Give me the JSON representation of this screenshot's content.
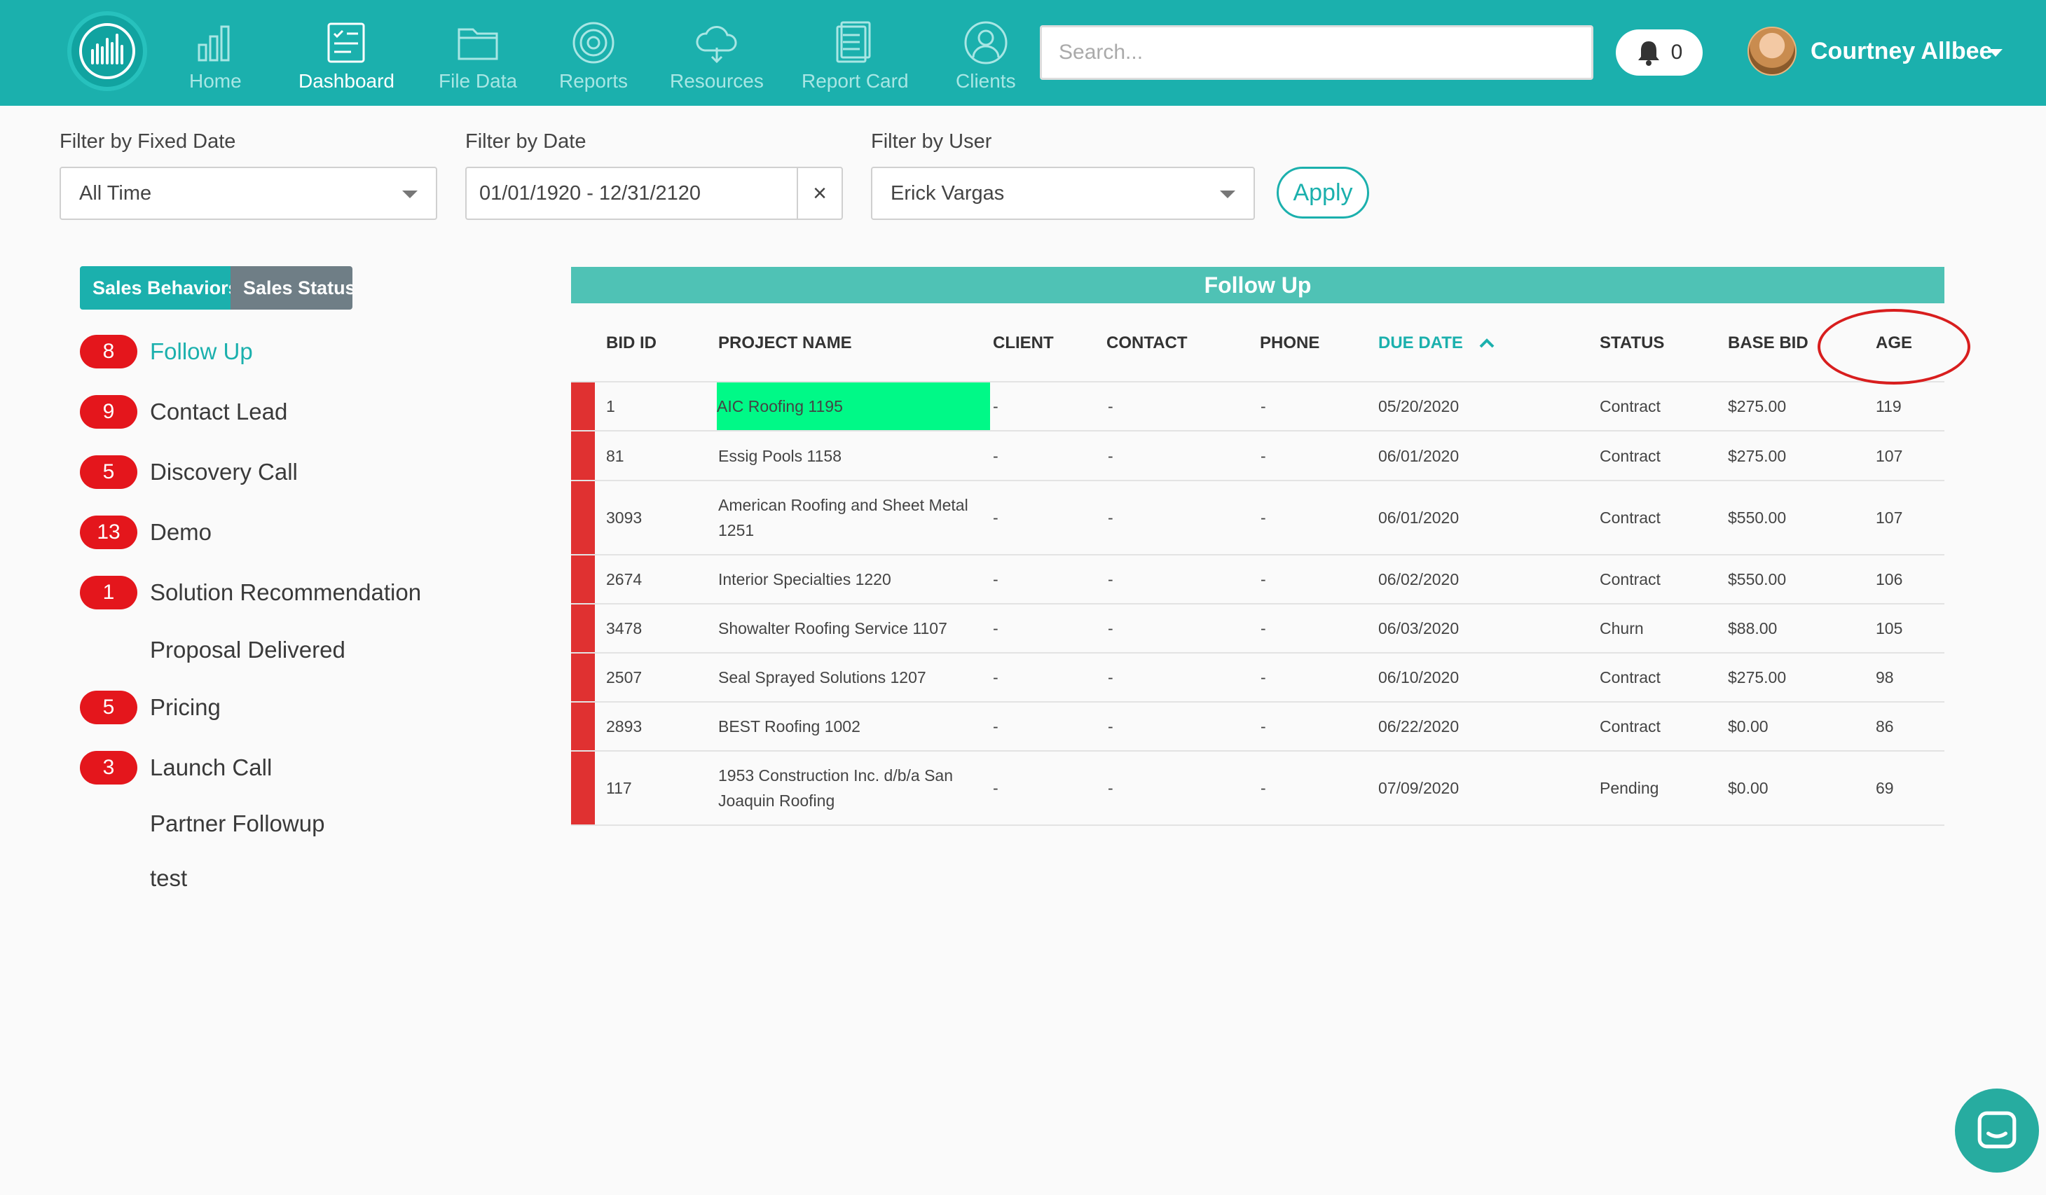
{
  "nav": {
    "items": [
      {
        "label": "Home",
        "icon": "bar-chart-icon"
      },
      {
        "label": "Dashboard",
        "icon": "checklist-icon",
        "active": true
      },
      {
        "label": "File Data",
        "icon": "folder-icon"
      },
      {
        "label": "Reports",
        "icon": "target-icon"
      },
      {
        "label": "Resources",
        "icon": "cloud-icon"
      },
      {
        "label": "Report Card",
        "icon": "document-icon"
      },
      {
        "label": "Clients",
        "icon": "user-icon"
      }
    ],
    "search_placeholder": "Search...",
    "notification_count": "0",
    "user_name": "Courtney Allbee"
  },
  "filters": {
    "fixed_date": {
      "label": "Filter by Fixed Date",
      "value": "All Time"
    },
    "date": {
      "label": "Filter by Date",
      "value": "01/01/1920 - 12/31/2120",
      "clear": "×"
    },
    "user": {
      "label": "Filter by User",
      "value": "Erick Vargas"
    },
    "apply_label": "Apply"
  },
  "sidebar": {
    "toggle": {
      "active": "Sales Behaviors",
      "inactive": "Sales Status"
    },
    "categories": [
      {
        "count": "8",
        "name": "Follow Up",
        "active": true
      },
      {
        "count": "9",
        "name": "Contact Lead"
      },
      {
        "count": "5",
        "name": "Discovery Call"
      },
      {
        "count": "13",
        "name": "Demo"
      },
      {
        "count": "1",
        "name": "Solution Recommendation"
      },
      {
        "count": "",
        "name": "Proposal Delivered"
      },
      {
        "count": "5",
        "name": "Pricing"
      },
      {
        "count": "3",
        "name": "Launch Call"
      },
      {
        "count": "",
        "name": "Partner Followup"
      },
      {
        "count": "",
        "name": "test"
      }
    ]
  },
  "table": {
    "title": "Follow Up",
    "columns": [
      "BID ID",
      "PROJECT NAME",
      "CLIENT",
      "CONTACT",
      "PHONE",
      "DUE DATE",
      "STATUS",
      "BASE BID",
      "AGE"
    ],
    "sorted_column": "DUE DATE",
    "sort_direction": "ascending",
    "row_marker_color": "#e03131",
    "highlight_color": "#00f987",
    "rows": [
      {
        "bid_id": "1",
        "project_name": "AIC Roofing 1195",
        "client": "-",
        "contact": "-",
        "phone": "-",
        "due_date": "05/20/2020",
        "status": "Contract",
        "base_bid": "$275.00",
        "age": "119",
        "highlighted": true
      },
      {
        "bid_id": "81",
        "project_name": "Essig Pools 1158",
        "client": "-",
        "contact": "-",
        "phone": "-",
        "due_date": "06/01/2020",
        "status": "Contract",
        "base_bid": "$275.00",
        "age": "107"
      },
      {
        "bid_id": "3093",
        "project_name": "American Roofing and Sheet Metal 1251",
        "client": "-",
        "contact": "-",
        "phone": "-",
        "due_date": "06/01/2020",
        "status": "Contract",
        "base_bid": "$550.00",
        "age": "107"
      },
      {
        "bid_id": "2674",
        "project_name": "Interior Specialties 1220",
        "client": "-",
        "contact": "-",
        "phone": "-",
        "due_date": "06/02/2020",
        "status": "Contract",
        "base_bid": "$550.00",
        "age": "106"
      },
      {
        "bid_id": "3478",
        "project_name": "Showalter Roofing Service 1107",
        "client": "-",
        "contact": "-",
        "phone": "-",
        "due_date": "06/03/2020",
        "status": "Churn",
        "base_bid": "$88.00",
        "age": "105"
      },
      {
        "bid_id": "2507",
        "project_name": "Seal Sprayed Solutions 1207",
        "client": "-",
        "contact": "-",
        "phone": "-",
        "due_date": "06/10/2020",
        "status": "Contract",
        "base_bid": "$275.00",
        "age": "98"
      },
      {
        "bid_id": "2893",
        "project_name": "BEST Roofing 1002",
        "client": "-",
        "contact": "-",
        "phone": "-",
        "due_date": "06/22/2020",
        "status": "Contract",
        "base_bid": "$0.00",
        "age": "86"
      },
      {
        "bid_id": "117",
        "project_name": "1953 Construction Inc. d/b/a San Joaquin Roofing",
        "client": "-",
        "contact": "-",
        "phone": "-",
        "due_date": "07/09/2020",
        "status": "Pending",
        "base_bid": "$0.00",
        "age": "69"
      }
    ]
  },
  "annotation": {
    "shape": "circle",
    "color": "#d81e1e",
    "target": "AGE"
  },
  "chat_widget": {
    "icon": "chat-icon"
  },
  "colors": {
    "brand": "#1bb0ad",
    "badge": "#e4161c",
    "table_title": "#4fc2b5"
  }
}
